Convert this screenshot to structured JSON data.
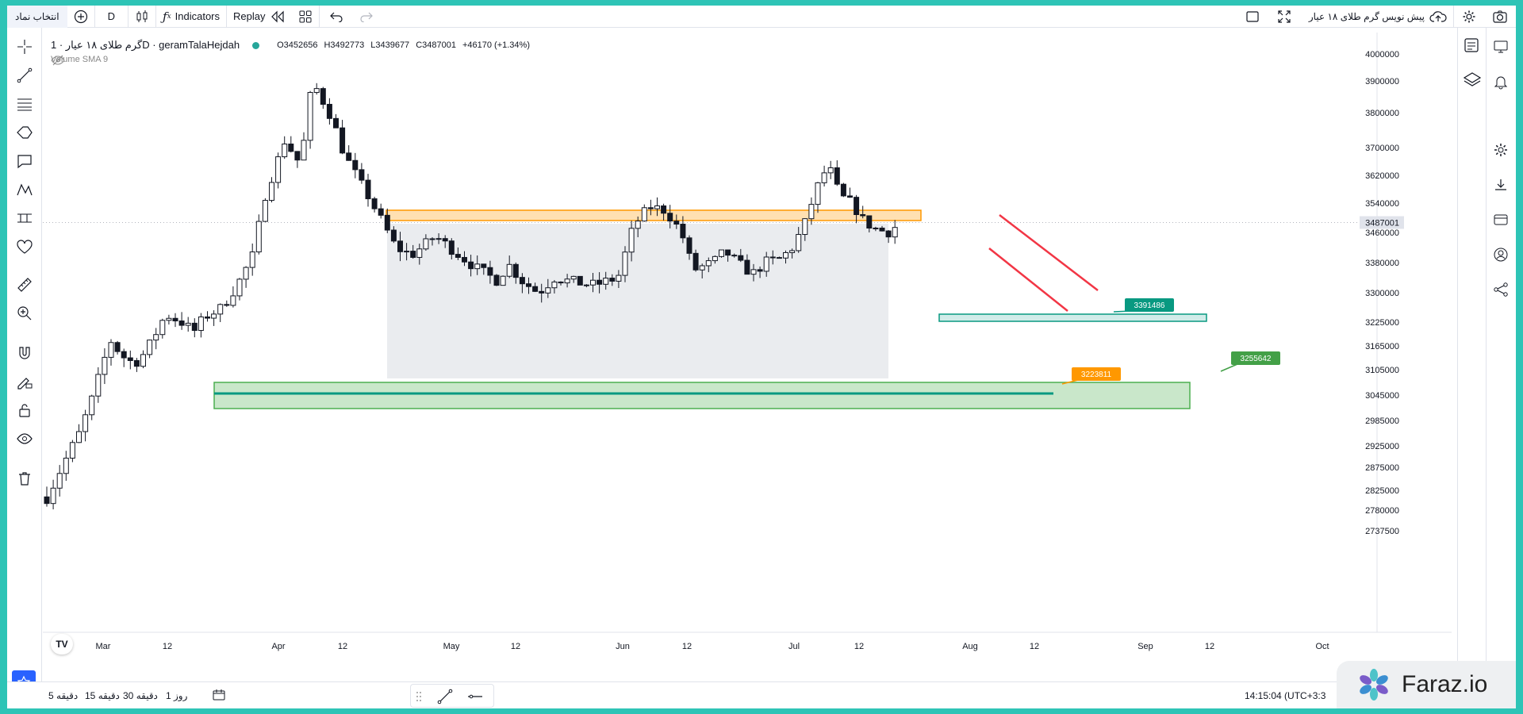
{
  "toolbar": {
    "symbol_button": "انتخاب نماد",
    "interval": "D",
    "indicators": "Indicators",
    "replay": "Replay",
    "layout_title": "پیش نویس گرم طلای ۱۸ عیار"
  },
  "legend": {
    "title": "گرم طلای ۱۸ عیار · 1D · geramTalaHejdah",
    "open": "O3452656",
    "high": "H3492773",
    "low": "L3439677",
    "close": "C3487001",
    "change": "+46170 (+1.34%)",
    "volume": "Volume SMA 9"
  },
  "chart_data": {
    "type": "candlestick",
    "symbol": "geramTalaHejdah",
    "interval": "1D",
    "y_ticks": [
      4000000,
      3900000,
      3800000,
      3700000,
      3620000,
      3540000,
      3460000,
      3380000,
      3300000,
      3225000,
      3165000,
      3105000,
      3045000,
      2985000,
      2925000,
      2875000,
      2825000,
      2780000,
      2737500
    ],
    "x_ticks": [
      "Mar",
      "12",
      "Apr",
      "12",
      "May",
      "12",
      "Jun",
      "12",
      "Jul",
      "12",
      "Aug",
      "12",
      "Sep",
      "12",
      "Oct"
    ],
    "last_price": "3487001",
    "annotations": [
      "3391486",
      "3223811",
      "3255642"
    ]
  },
  "colors": {
    "accent": "#2962ff",
    "up": "#ffffff",
    "down": "#131722",
    "teal": "#089981",
    "orange_zone": "#ff9800",
    "green_zone": "#4caf50",
    "red_line": "#f23645",
    "frame": "#2ec4b6"
  },
  "bottom": {
    "timeframes": [
      "5 دقیقه",
      "15 دقیقه",
      "30 دقیقه",
      "1 روز"
    ],
    "clock": "14:15:04 (UTC+3:3"
  },
  "watermark": "Faraz.io"
}
